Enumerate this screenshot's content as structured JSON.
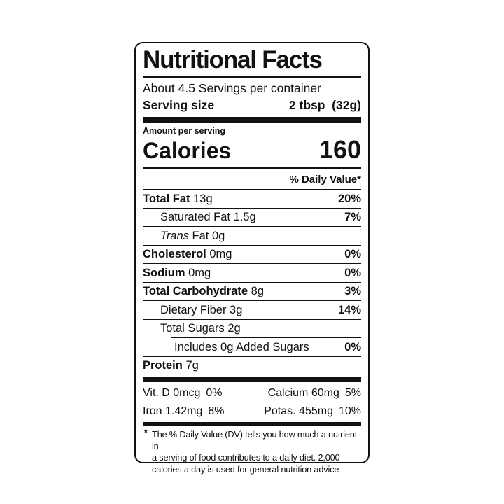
{
  "colors": {
    "text": "#111111",
    "background": "#ffffff",
    "border": "#111111"
  },
  "label": {
    "title": "Nutritional Facts",
    "servings_per_container": "About 4.5 Servings per container",
    "serving_size_label": "Serving size",
    "serving_size_value": "2 tbsp  (32g)",
    "amount_per_serving": "Amount per serving",
    "calories_label": "Calories",
    "calories_value": "160",
    "daily_value_header": "% Daily Value*",
    "nutrients": [
      {
        "name": "Total Fat",
        "amount": "13g",
        "dv": "20%"
      },
      {
        "name": "Saturated Fat",
        "amount": "1.5g",
        "dv": "7%"
      },
      {
        "name": "Trans",
        "amount": "Fat 0g",
        "dv": ""
      },
      {
        "name": "Cholesterol",
        "amount": "0mg",
        "dv": "0%"
      },
      {
        "name": "Sodium",
        "amount": "0mg",
        "dv": "0%"
      },
      {
        "name": "Total Carbohydrate",
        "amount": "8g",
        "dv": "3%"
      },
      {
        "name": "Dietary Fiber",
        "amount": "3g",
        "dv": "14%"
      },
      {
        "name": "Total Sugars",
        "amount": "2g",
        "dv": ""
      },
      {
        "name": "Includes 0g Added Sugars",
        "amount": "",
        "dv": "0%"
      },
      {
        "name": "Protein",
        "amount": "7g",
        "dv": ""
      }
    ],
    "micronutrients": [
      {
        "name": "Vit. D",
        "amount": "0mcg",
        "dv": "0%"
      },
      {
        "name": "Calcium",
        "amount": "60mg",
        "dv": "5%"
      },
      {
        "name": "Iron",
        "amount": "1.42mg",
        "dv": "8%"
      },
      {
        "name": "Potas.",
        "amount": "455mg",
        "dv": "10%"
      }
    ],
    "footnote_symbol": "*",
    "footnote_lines": [
      "The % Daily Value (DV) tells you how much a nutrient in",
      "a serving of food contributes to a daily diet. 2,000",
      "calories a day is used for general nutrition advice"
    ]
  }
}
